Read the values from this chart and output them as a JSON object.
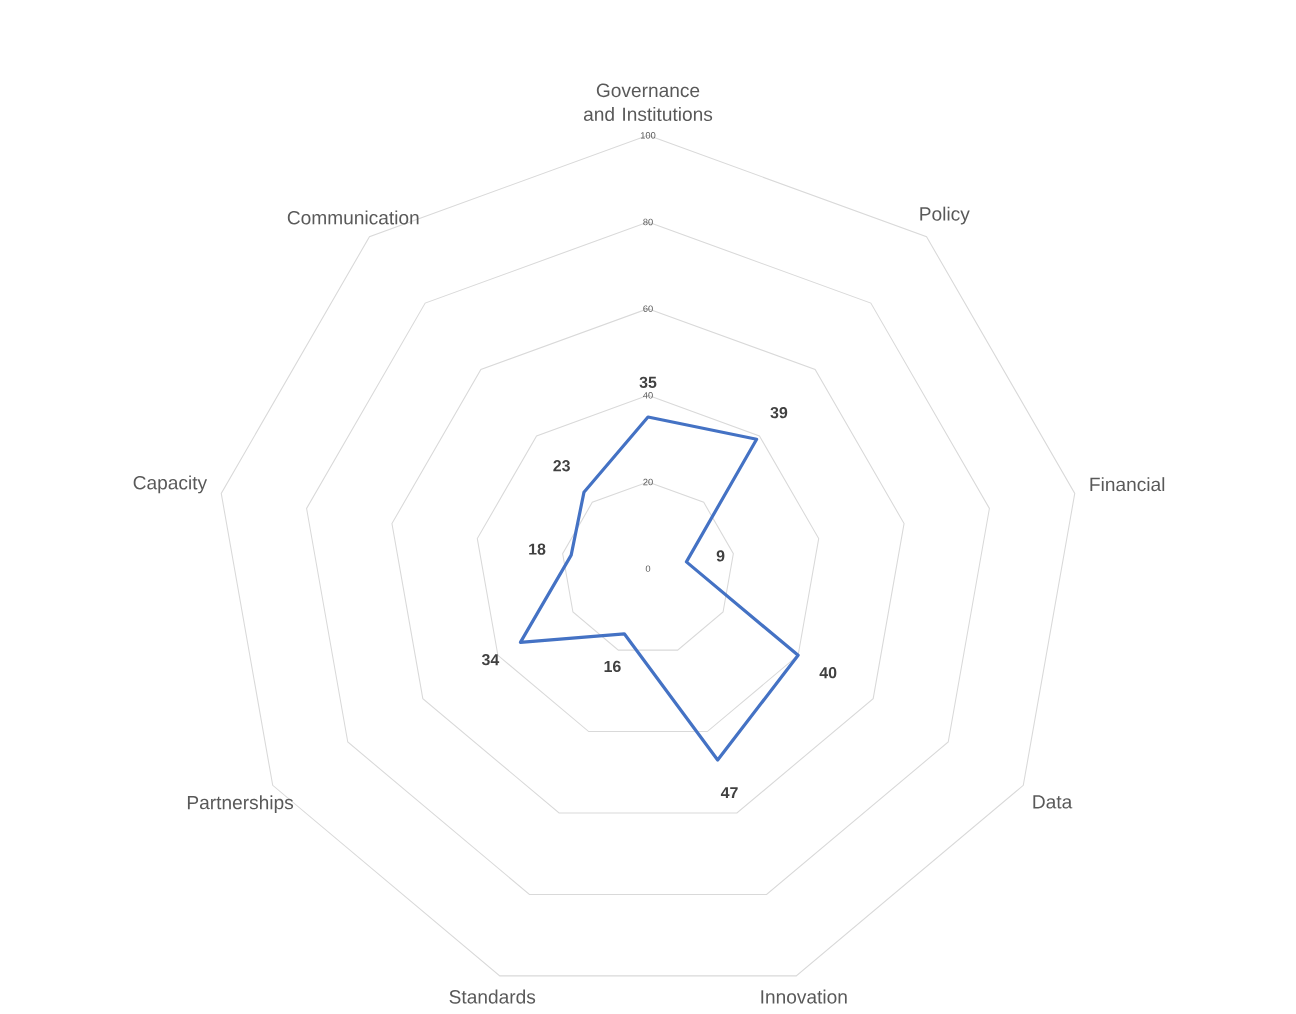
{
  "chart_data": {
    "type": "radar",
    "categories": [
      "Governance and Institutions",
      "Policy",
      "Financial",
      "Data",
      "Innovation",
      "Standards",
      "Partnerships",
      "Capacity",
      "Communication"
    ],
    "series": [
      {
        "color": "#4472c4",
        "values": [
          35,
          39,
          9,
          40,
          47,
          16,
          34,
          18,
          23
        ]
      }
    ],
    "ylim": [
      0,
      100
    ],
    "yticks": [
      0,
      20,
      40,
      60,
      80,
      100
    ],
    "grid": true,
    "data_labels": true
  }
}
